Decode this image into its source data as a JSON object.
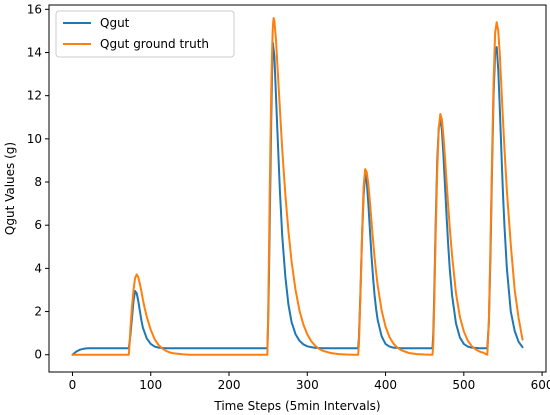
{
  "chart_data": {
    "type": "line",
    "title": "",
    "xlabel": "Time Steps (5min Intervals)",
    "ylabel": "Qgut Values (g)",
    "xlim": [
      -30,
      605
    ],
    "ylim": [
      -0.8,
      16.2
    ],
    "xticks": [
      0,
      100,
      200,
      300,
      400,
      500,
      600
    ],
    "yticks": [
      0,
      2,
      4,
      6,
      8,
      10,
      12,
      14,
      16
    ],
    "grid": false,
    "legend": {
      "position": "top-left"
    },
    "series": [
      {
        "name": "Qgut",
        "color": "#1f77b4",
        "x": [
          0,
          5,
          10,
          15,
          20,
          30,
          40,
          50,
          60,
          70,
          72,
          74,
          76,
          78,
          80,
          82,
          84,
          86,
          88,
          90,
          95,
          100,
          105,
          110,
          115,
          120,
          130,
          140,
          160,
          180,
          200,
          220,
          240,
          249,
          250,
          251,
          252,
          253,
          254,
          255,
          256,
          258,
          260,
          262,
          265,
          268,
          272,
          276,
          280,
          285,
          290,
          295,
          300,
          305,
          310,
          320,
          340,
          365,
          366,
          368,
          370,
          372,
          374,
          376,
          378,
          380,
          382,
          384,
          386,
          388,
          390,
          395,
          400,
          405,
          410,
          420,
          440,
          460,
          461,
          462,
          464,
          466,
          468,
          470,
          472,
          474,
          476,
          478,
          480,
          482,
          485,
          490,
          495,
          500,
          505,
          510,
          520,
          530,
          532,
          534,
          536,
          538,
          540,
          542,
          544,
          546,
          548,
          550,
          552,
          555,
          560,
          565,
          570,
          575
        ],
        "y": [
          0.0,
          0.15,
          0.24,
          0.28,
          0.3,
          0.3,
          0.3,
          0.3,
          0.3,
          0.3,
          0.3,
          0.9,
          1.7,
          2.5,
          2.95,
          2.85,
          2.5,
          2.05,
          1.6,
          1.25,
          0.75,
          0.5,
          0.38,
          0.33,
          0.31,
          0.3,
          0.3,
          0.3,
          0.3,
          0.3,
          0.3,
          0.3,
          0.3,
          0.3,
          1.5,
          3.5,
          6.0,
          8.5,
          11.0,
          13.0,
          14.45,
          13.8,
          12.0,
          10.2,
          7.6,
          5.5,
          3.6,
          2.3,
          1.5,
          0.95,
          0.65,
          0.48,
          0.39,
          0.35,
          0.32,
          0.3,
          0.3,
          0.3,
          0.8,
          3.0,
          5.5,
          7.4,
          8.35,
          8.0,
          7.0,
          5.8,
          4.6,
          3.6,
          2.75,
          2.1,
          1.6,
          0.85,
          0.5,
          0.38,
          0.33,
          0.3,
          0.3,
          0.3,
          1.0,
          2.5,
          6.0,
          9.0,
          10.5,
          10.95,
          10.4,
          9.2,
          7.8,
          6.4,
          5.1,
          4.0,
          2.75,
          1.45,
          0.8,
          0.5,
          0.38,
          0.33,
          0.3,
          0.3,
          1.5,
          4.5,
          8.5,
          12.0,
          14.0,
          14.25,
          13.2,
          11.4,
          9.4,
          7.5,
          5.9,
          4.0,
          2.0,
          1.1,
          0.6,
          0.35
        ]
      },
      {
        "name": "Qgut ground truth",
        "color": "#ff7f0e",
        "x": [
          0,
          10,
          20,
          30,
          40,
          50,
          60,
          70,
          72,
          73,
          74,
          76,
          78,
          80,
          82,
          84,
          86,
          88,
          90,
          92,
          95,
          100,
          105,
          110,
          115,
          120,
          125,
          130,
          140,
          150,
          160,
          180,
          200,
          220,
          240,
          249,
          250,
          251,
          252,
          253,
          254,
          255,
          256,
          257,
          258,
          260,
          262,
          265,
          268,
          272,
          276,
          280,
          285,
          290,
          295,
          300,
          305,
          310,
          315,
          320,
          330,
          340,
          350,
          360,
          365,
          366,
          368,
          370,
          372,
          374,
          376,
          378,
          380,
          382,
          384,
          386,
          388,
          390,
          395,
          400,
          405,
          410,
          415,
          420,
          430,
          440,
          450,
          460,
          461,
          462,
          464,
          466,
          468,
          470,
          472,
          474,
          476,
          478,
          480,
          482,
          485,
          490,
          495,
          500,
          505,
          510,
          515,
          520,
          525,
          530,
          532,
          534,
          536,
          538,
          540,
          542,
          544,
          546,
          548,
          550,
          552,
          555,
          560,
          565,
          570,
          575
        ],
        "y": [
          0.0,
          0.0,
          0.0,
          0.0,
          0.0,
          0.0,
          0.0,
          0.0,
          0.0,
          0.5,
          1.2,
          2.2,
          3.0,
          3.55,
          3.72,
          3.6,
          3.3,
          2.95,
          2.55,
          2.2,
          1.75,
          1.15,
          0.72,
          0.45,
          0.28,
          0.17,
          0.1,
          0.06,
          0.02,
          0.0,
          0.0,
          0.0,
          0.0,
          0.0,
          0.0,
          0.0,
          1.8,
          4.5,
          7.5,
          10.0,
          12.3,
          14.0,
          15.2,
          15.6,
          15.45,
          14.6,
          13.3,
          11.4,
          9.5,
          7.4,
          5.7,
          4.3,
          3.0,
          2.05,
          1.4,
          0.95,
          0.63,
          0.42,
          0.27,
          0.18,
          0.08,
          0.03,
          0.01,
          0.0,
          0.0,
          0.5,
          2.8,
          5.6,
          7.8,
          8.6,
          8.45,
          7.9,
          7.1,
          6.2,
          5.3,
          4.5,
          3.8,
          3.2,
          2.05,
          1.3,
          0.82,
          0.52,
          0.33,
          0.21,
          0.08,
          0.03,
          0.01,
          0.0,
          0.5,
          2.0,
          5.5,
          8.5,
          10.5,
          11.15,
          10.9,
          10.1,
          9.1,
          8.0,
          6.9,
          5.9,
          4.6,
          2.85,
          1.75,
          1.08,
          0.66,
          0.4,
          0.25,
          0.15,
          0.09,
          0.0,
          1.5,
          5.0,
          9.0,
          12.6,
          14.9,
          15.4,
          15.0,
          13.9,
          12.4,
          10.9,
          9.5,
          7.6,
          5.1,
          3.0,
          1.7,
          0.7
        ]
      }
    ]
  }
}
